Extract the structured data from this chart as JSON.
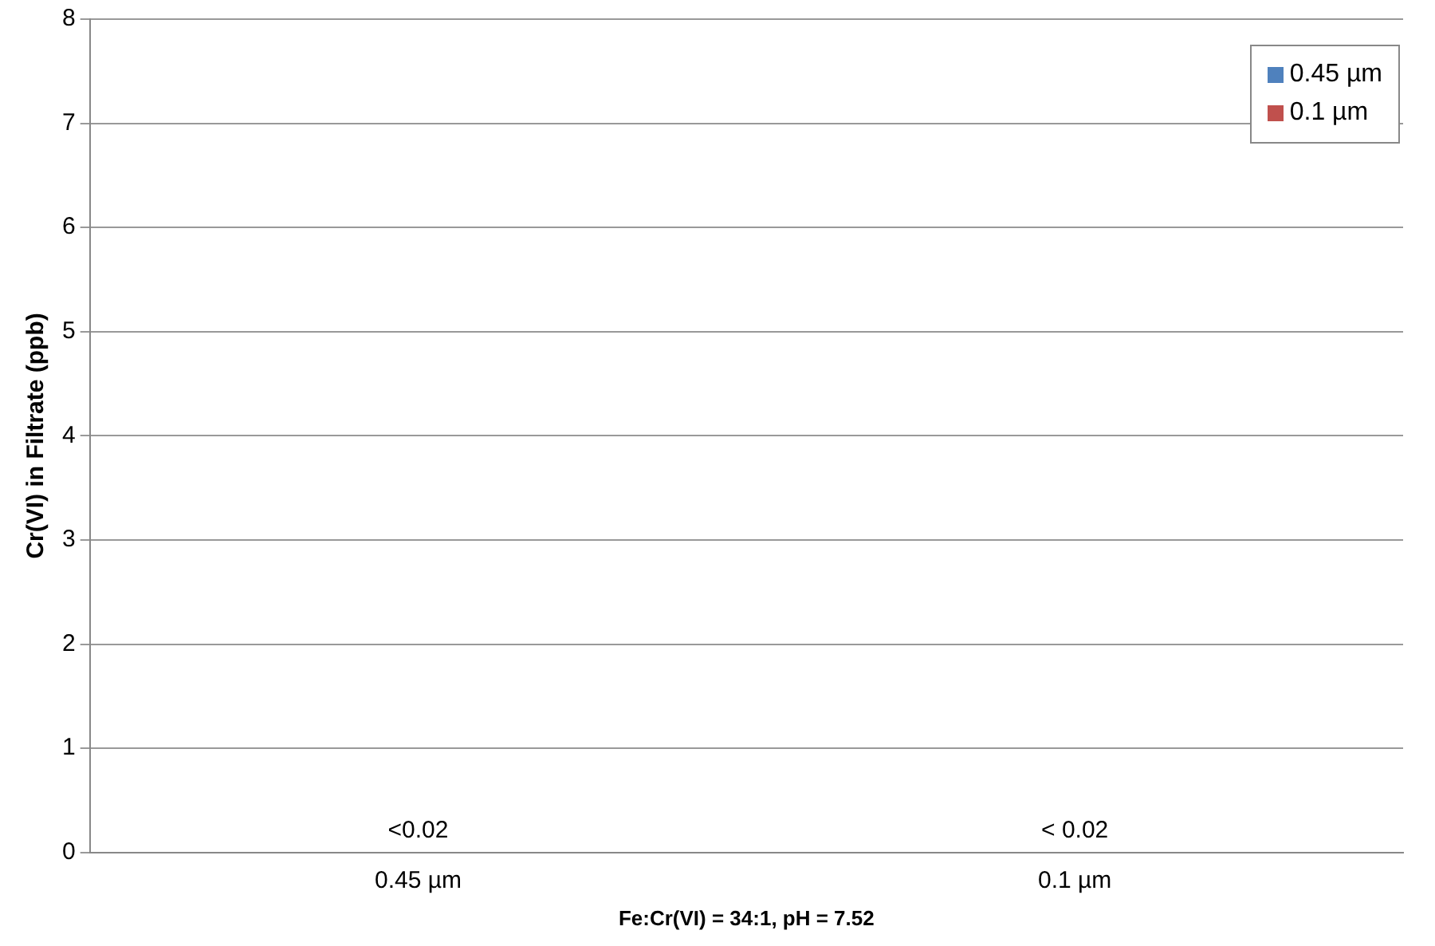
{
  "chart_data": {
    "type": "bar",
    "xlabel": "Fe:Cr(VI) = 34:1, pH = 7.52",
    "ylabel": "Cr(VI) in Filtrate (ppb)",
    "categories": [
      "0.45 µm",
      "0.1 µm"
    ],
    "series": [
      {
        "name": "0.45 µm",
        "color": "#4f81bd",
        "values": [
          0,
          null
        ],
        "value_labels": [
          "<0.02",
          null
        ]
      },
      {
        "name": "0.1 µm",
        "color": "#c0504d",
        "values": [
          null,
          0
        ],
        "value_labels": [
          null,
          "< 0.02"
        ]
      }
    ],
    "ylim": [
      0,
      8
    ],
    "yticks": [
      0,
      1,
      2,
      3,
      4,
      5,
      6,
      7,
      8
    ],
    "grid": "y",
    "legend": "top right"
  }
}
